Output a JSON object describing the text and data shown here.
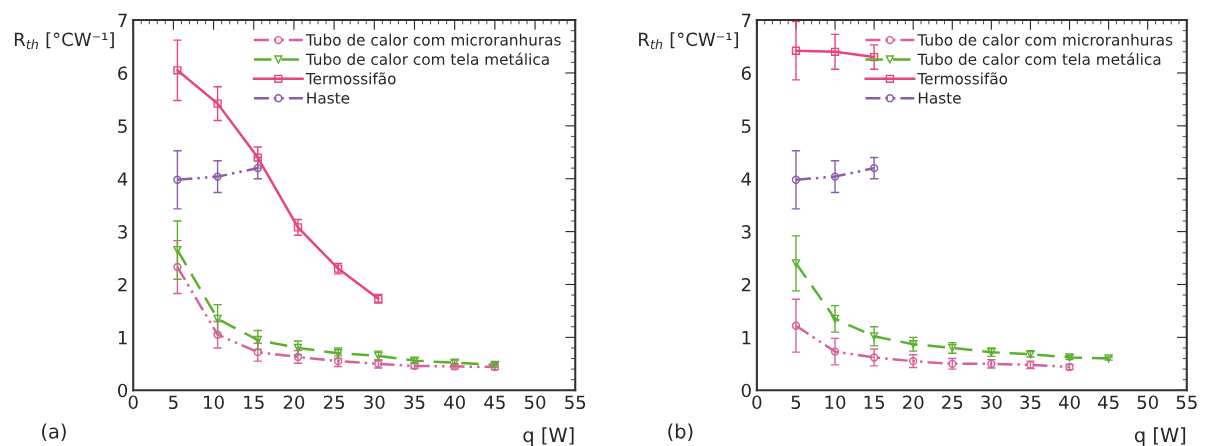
{
  "chart_data": [
    {
      "type": "line",
      "xlabel": "q [W]",
      "ylabel": "R$_{th}$ [°CW⁻¹]",
      "annotations": [
        "(a)"
      ],
      "xlim": [
        0,
        55
      ],
      "ylim": [
        0,
        7
      ],
      "xticks": [
        0,
        5,
        10,
        15,
        20,
        25,
        30,
        35,
        40,
        45,
        50,
        55
      ],
      "yticks": [
        0,
        1,
        2,
        3,
        4,
        5,
        6,
        7
      ],
      "legend": "top right",
      "grid": false,
      "series": [
        {
          "name": "Tubo de calor com microranhuras",
          "color": "#d9609a",
          "marker": "circle",
          "line_style": "dashdot",
          "x": [
            5.5,
            10.5,
            15.5,
            20.5,
            25.5,
            30.5,
            35,
            40,
            45
          ],
          "values": [
            2.33,
            1.05,
            0.72,
            0.63,
            0.55,
            0.5,
            0.46,
            0.45,
            0.44
          ],
          "errors": [
            0.5,
            0.25,
            0.17,
            0.12,
            0.1,
            0.08,
            0.05,
            0.05,
            0.05
          ]
        },
        {
          "name": "Tubo de calor com tela metálica",
          "color": "#5cb030",
          "marker": "triangle",
          "line_style": "dashed",
          "x": [
            5.5,
            10.5,
            15.5,
            20.5,
            25.5,
            30.5,
            35,
            40,
            45
          ],
          "values": [
            2.65,
            1.35,
            0.95,
            0.8,
            0.7,
            0.65,
            0.56,
            0.52,
            0.48
          ],
          "errors": [
            0.55,
            0.27,
            0.18,
            0.13,
            0.1,
            0.09,
            0.05,
            0.05,
            0.04
          ]
        },
        {
          "name": "Termossifão",
          "color": "#e8457a",
          "marker": "square",
          "line_style": "solid",
          "x": [
            5.5,
            10.5,
            15.5,
            20.5,
            25.5,
            30.5
          ],
          "values": [
            6.05,
            5.42,
            4.4,
            3.08,
            2.3,
            1.73
          ],
          "errors": [
            0.57,
            0.32,
            0.2,
            0.15,
            0.1,
            0.08
          ]
        },
        {
          "name": "Haste",
          "color": "#8a5fa8",
          "marker": "circle",
          "line_style": "dashdot",
          "x": [
            5.5,
            10.5,
            15.5
          ],
          "values": [
            3.98,
            4.04,
            4.2
          ],
          "errors": [
            0.55,
            0.3,
            0.2
          ]
        }
      ]
    },
    {
      "type": "line",
      "xlabel": "q [W]",
      "ylabel": "R$_{th}$ [°CW⁻¹]",
      "annotations": [
        "(b)"
      ],
      "xlim": [
        0,
        55
      ],
      "ylim": [
        0,
        7
      ],
      "xticks": [
        0,
        5,
        10,
        15,
        20,
        25,
        30,
        35,
        40,
        45,
        50,
        55
      ],
      "yticks": [
        0,
        1,
        2,
        3,
        4,
        5,
        6,
        7
      ],
      "legend": "top right",
      "grid": false,
      "series": [
        {
          "name": "Tubo de calor com microranhuras",
          "color": "#d9609a",
          "marker": "circle",
          "line_style": "dashdot",
          "x": [
            5,
            10,
            15,
            20,
            25,
            30,
            35,
            40
          ],
          "values": [
            1.22,
            0.73,
            0.62,
            0.55,
            0.5,
            0.5,
            0.48,
            0.44
          ],
          "errors": [
            0.5,
            0.25,
            0.16,
            0.12,
            0.1,
            0.08,
            0.07,
            0.05
          ]
        },
        {
          "name": "Tubo de calor com tela metálica",
          "color": "#5cb030",
          "marker": "triangle",
          "line_style": "dashed",
          "x": [
            5,
            10,
            15,
            20,
            25,
            30,
            35,
            40,
            45
          ],
          "values": [
            2.4,
            1.35,
            1.02,
            0.87,
            0.8,
            0.72,
            0.68,
            0.62,
            0.6
          ],
          "errors": [
            0.52,
            0.25,
            0.18,
            0.13,
            0.1,
            0.08,
            0.05,
            0.04,
            0.03
          ]
        },
        {
          "name": "Termossifão",
          "color": "#e8457a",
          "marker": "square",
          "line_style": "solid",
          "x": [
            5,
            10,
            15
          ],
          "values": [
            6.42,
            6.4,
            6.3
          ],
          "errors": [
            0.55,
            0.33,
            0.23
          ]
        },
        {
          "name": "Haste",
          "color": "#8a5fa8",
          "marker": "circle",
          "line_style": "dashdot",
          "x": [
            5,
            10,
            15
          ],
          "values": [
            3.98,
            4.04,
            4.2
          ],
          "errors": [
            0.55,
            0.3,
            0.2
          ]
        }
      ]
    }
  ]
}
